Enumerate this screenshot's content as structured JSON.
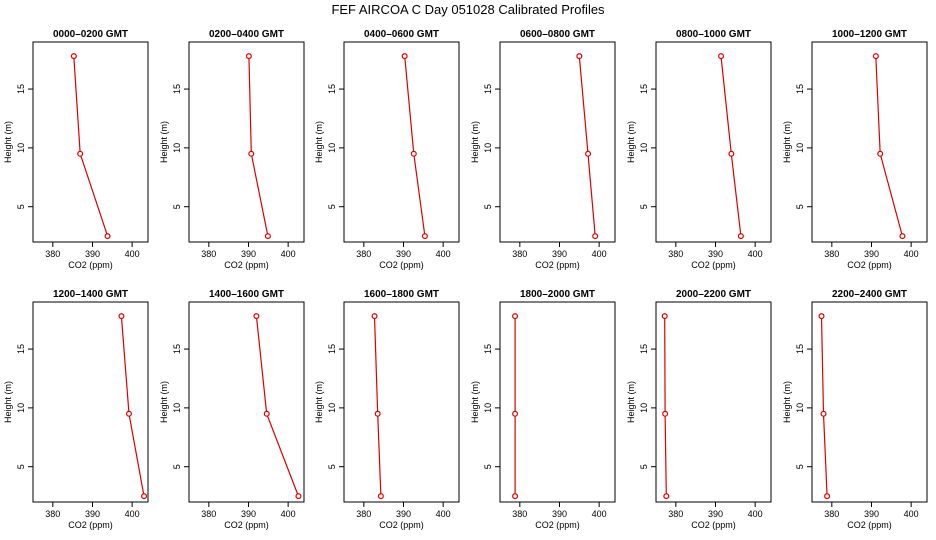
{
  "figure_title": "FEF AIRCOA C  Day 051028  Calibrated Profiles",
  "colors": {
    "series": "#dd0000",
    "axes": "#000000",
    "background": "#ffffff"
  },
  "chart_data": [
    {
      "type": "line",
      "title": "0000–0200 GMT",
      "xlabel": "CO2 (ppm)",
      "ylabel": "Height (m)",
      "xlim": [
        375,
        404
      ],
      "ylim": [
        2,
        19
      ],
      "xticks": [
        380,
        390,
        400
      ],
      "yticks": [
        5,
        10,
        15
      ],
      "grid": false,
      "series": [
        {
          "x": [
            393.8,
            386.9,
            385.3
          ],
          "y": [
            2.5,
            9.5,
            17.8
          ]
        }
      ]
    },
    {
      "type": "line",
      "title": "0200–0400 GMT",
      "xlabel": "CO2 (ppm)",
      "ylabel": "Height (m)",
      "xlim": [
        375,
        404
      ],
      "ylim": [
        2,
        19
      ],
      "xticks": [
        380,
        390,
        400
      ],
      "yticks": [
        5,
        10,
        15
      ],
      "grid": false,
      "series": [
        {
          "x": [
            394.9,
            390.7,
            390.1
          ],
          "y": [
            2.5,
            9.5,
            17.8
          ]
        }
      ]
    },
    {
      "type": "line",
      "title": "0400–0600 GMT",
      "xlabel": "CO2 (ppm)",
      "ylabel": "Height (m)",
      "xlim": [
        375,
        404
      ],
      "ylim": [
        2,
        19
      ],
      "xticks": [
        380,
        390,
        400
      ],
      "yticks": [
        5,
        10,
        15
      ],
      "grid": false,
      "series": [
        {
          "x": [
            395.4,
            392.6,
            390.3
          ],
          "y": [
            2.5,
            9.5,
            17.8
          ]
        }
      ]
    },
    {
      "type": "line",
      "title": "0600–0800 GMT",
      "xlabel": "CO2 (ppm)",
      "ylabel": "Height (m)",
      "xlim": [
        375,
        404
      ],
      "ylim": [
        2,
        19
      ],
      "xticks": [
        380,
        390,
        400
      ],
      "yticks": [
        5,
        10,
        15
      ],
      "grid": false,
      "series": [
        {
          "x": [
            399.0,
            397.2,
            395.0
          ],
          "y": [
            2.5,
            9.5,
            17.8
          ]
        }
      ]
    },
    {
      "type": "line",
      "title": "0800–1000 GMT",
      "xlabel": "CO2 (ppm)",
      "ylabel": "Height (m)",
      "xlim": [
        375,
        404
      ],
      "ylim": [
        2,
        19
      ],
      "xticks": [
        380,
        390,
        400
      ],
      "yticks": [
        5,
        10,
        15
      ],
      "grid": false,
      "series": [
        {
          "x": [
            396.4,
            394.0,
            391.4
          ],
          "y": [
            2.5,
            9.5,
            17.8
          ]
        }
      ]
    },
    {
      "type": "line",
      "title": "1000–1200 GMT",
      "xlabel": "CO2 (ppm)",
      "ylabel": "Height (m)",
      "xlim": [
        375,
        404
      ],
      "ylim": [
        2,
        19
      ],
      "xticks": [
        380,
        390,
        400
      ],
      "yticks": [
        5,
        10,
        15
      ],
      "grid": false,
      "series": [
        {
          "x": [
            397.8,
            392.2,
            391.1
          ],
          "y": [
            2.5,
            9.5,
            17.8
          ]
        }
      ]
    },
    {
      "type": "line",
      "title": "1200–1400 GMT",
      "xlabel": "CO2 (ppm)",
      "ylabel": "Height (m)",
      "xlim": [
        375,
        404
      ],
      "ylim": [
        2,
        19
      ],
      "xticks": [
        380,
        390,
        400
      ],
      "yticks": [
        5,
        10,
        15
      ],
      "grid": false,
      "series": [
        {
          "x": [
            403.0,
            399.2,
            397.3
          ],
          "y": [
            2.5,
            9.5,
            17.8
          ]
        }
      ]
    },
    {
      "type": "line",
      "title": "1400–1600 GMT",
      "xlabel": "CO2 (ppm)",
      "ylabel": "Height (m)",
      "xlim": [
        375,
        404
      ],
      "ylim": [
        2,
        19
      ],
      "xticks": [
        380,
        390,
        400
      ],
      "yticks": [
        5,
        10,
        15
      ],
      "grid": false,
      "series": [
        {
          "x": [
            402.6,
            394.6,
            392.0
          ],
          "y": [
            2.5,
            9.5,
            17.8
          ]
        }
      ]
    },
    {
      "type": "line",
      "title": "1600–1800 GMT",
      "xlabel": "CO2 (ppm)",
      "ylabel": "Height (m)",
      "xlim": [
        375,
        404
      ],
      "ylim": [
        2,
        19
      ],
      "xticks": [
        380,
        390,
        400
      ],
      "yticks": [
        5,
        10,
        15
      ],
      "grid": false,
      "series": [
        {
          "x": [
            384.3,
            383.5,
            382.7
          ],
          "y": [
            2.5,
            9.5,
            17.8
          ]
        }
      ]
    },
    {
      "type": "line",
      "title": "1800–2000 GMT",
      "xlabel": "CO2 (ppm)",
      "ylabel": "Height (m)",
      "xlim": [
        375,
        404
      ],
      "ylim": [
        2,
        19
      ],
      "xticks": [
        380,
        390,
        400
      ],
      "yticks": [
        5,
        10,
        15
      ],
      "grid": false,
      "series": [
        {
          "x": [
            378.8,
            378.8,
            378.8
          ],
          "y": [
            2.5,
            9.5,
            17.8
          ]
        }
      ]
    },
    {
      "type": "line",
      "title": "2000–2200 GMT",
      "xlabel": "CO2 (ppm)",
      "ylabel": "Height (m)",
      "xlim": [
        375,
        404
      ],
      "ylim": [
        2,
        19
      ],
      "xticks": [
        380,
        390,
        400
      ],
      "yticks": [
        5,
        10,
        15
      ],
      "grid": false,
      "series": [
        {
          "x": [
            377.6,
            377.3,
            377.2
          ],
          "y": [
            2.5,
            9.5,
            17.8
          ]
        }
      ]
    },
    {
      "type": "line",
      "title": "2200–2400 GMT",
      "xlabel": "CO2 (ppm)",
      "ylabel": "Height (m)",
      "xlim": [
        375,
        404
      ],
      "ylim": [
        2,
        19
      ],
      "xticks": [
        380,
        390,
        400
      ],
      "yticks": [
        5,
        10,
        15
      ],
      "grid": false,
      "series": [
        {
          "x": [
            378.8,
            377.9,
            377.4
          ],
          "y": [
            2.5,
            9.5,
            17.8
          ]
        }
      ]
    }
  ]
}
